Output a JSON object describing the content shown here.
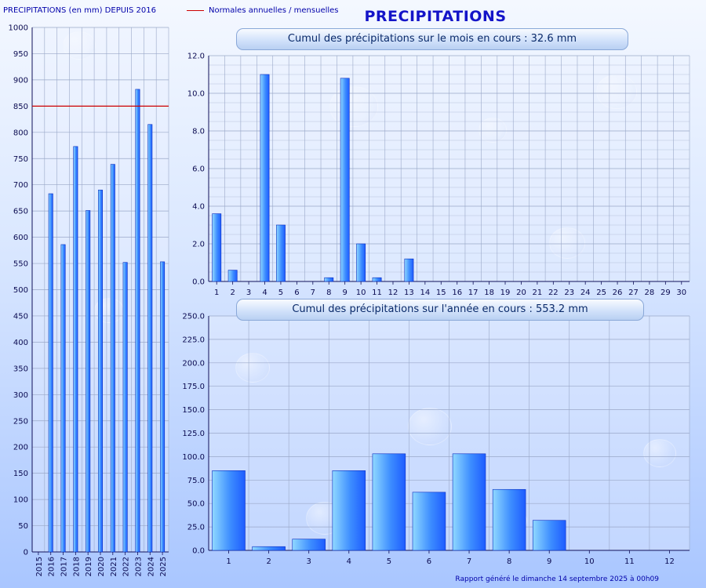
{
  "header": {
    "legend_left": "PRECIPITATIONS (en mm) DEPUIS 2016",
    "legend_right": "Normales annuelles / mensuelles",
    "title": "PRECIPITATIONS"
  },
  "panels": {
    "month_title": "Cumul des précipitations sur le mois en cours : 32.6 mm",
    "year_title": "Cumul des précipitations sur l'année en cours : 553.2 mm"
  },
  "footer": "Rapport généré le dimanche 14 septembre 2025 à 00h09",
  "colors": {
    "bar": "#1e5cff",
    "bar_light": "#8fd8ff",
    "normal_line": "#cc0000"
  },
  "chart_data": [
    {
      "id": "annual",
      "type": "bar",
      "categories": [
        "2015",
        "2016",
        "2017",
        "2018",
        "2019",
        "2020",
        "2021",
        "2022",
        "2023",
        "2024",
        "2025"
      ],
      "values": [
        0,
        683,
        586,
        773,
        651,
        690,
        739,
        552,
        882,
        815,
        553.2
      ],
      "normal": 850,
      "ylim": [
        0,
        1000
      ],
      "yticks": [
        0,
        50,
        100,
        150,
        200,
        250,
        300,
        350,
        400,
        450,
        500,
        550,
        600,
        650,
        700,
        750,
        800,
        850,
        900,
        950,
        1000
      ],
      "decimals": 0,
      "grid": true
    },
    {
      "id": "month",
      "type": "bar",
      "categories": [
        "1",
        "2",
        "3",
        "4",
        "5",
        "6",
        "7",
        "8",
        "9",
        "10",
        "11",
        "12",
        "13",
        "14",
        "15",
        "16",
        "17",
        "18",
        "19",
        "20",
        "21",
        "22",
        "23",
        "24",
        "25",
        "26",
        "27",
        "28",
        "29",
        "30"
      ],
      "values": [
        3.6,
        0.6,
        0,
        11.0,
        3.0,
        0,
        0,
        0.2,
        10.8,
        2.0,
        0.2,
        0,
        1.2,
        0,
        0,
        0,
        0,
        0,
        0,
        0,
        0,
        0,
        0,
        0,
        0,
        0,
        0,
        0,
        0,
        0
      ],
      "ylim": [
        0,
        12
      ],
      "yticks": [
        0,
        2,
        4,
        6,
        8,
        10,
        12
      ],
      "decimals": 1,
      "grid": true
    },
    {
      "id": "year",
      "type": "bar",
      "categories": [
        "1",
        "2",
        "3",
        "4",
        "5",
        "6",
        "7",
        "8",
        "9",
        "10",
        "11",
        "12"
      ],
      "values": [
        85,
        4,
        12,
        85,
        103,
        62,
        103,
        65,
        32,
        0,
        0,
        0
      ],
      "ylim": [
        0,
        250
      ],
      "yticks": [
        0,
        25,
        50,
        75,
        100,
        125,
        150,
        175,
        200,
        225,
        250
      ],
      "decimals": 1,
      "grid": true
    }
  ]
}
